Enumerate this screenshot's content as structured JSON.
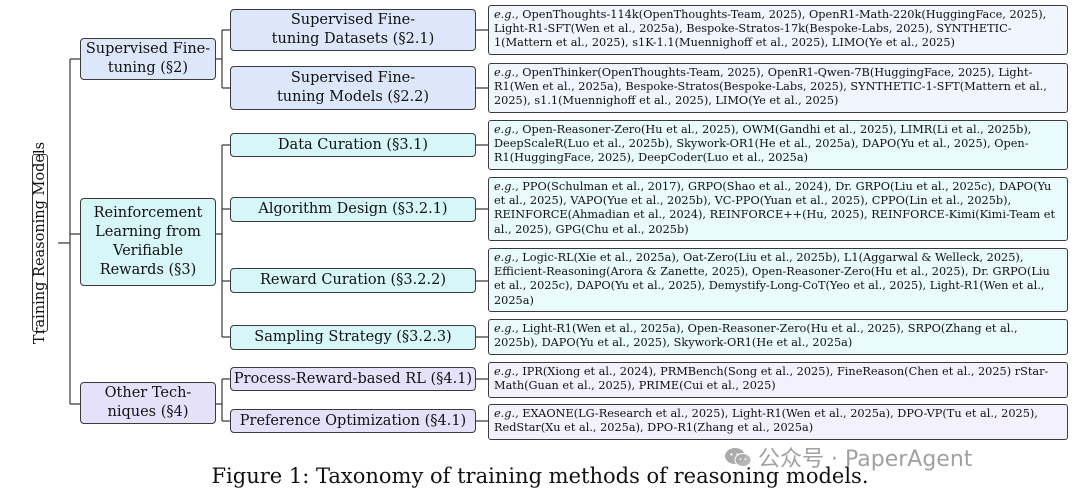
{
  "root": {
    "label": "Training Reasoning Models"
  },
  "categories": [
    {
      "label": "Supervised Fine-tuning (§2)",
      "color": "#dde7fb",
      "children": [
        {
          "label": "Supervised Fine-tuning Datasets (§2.1)",
          "eg": "e.g.,",
          "refs": "OpenThoughts-114k(OpenThoughts-Team, 2025), OpenR1-Math-220k(HuggingFace, 2025), Light-R1-SFT(Wen et al., 2025a), Bespoke-Stratos-17k(Bespoke-Labs, 2025), SYNTHETIC-1(Mattern et al., 2025), s1K-1.1(Muennighoff et al., 2025), LIMO(Ye et al., 2025)"
        },
        {
          "label": "Supervised Fine-tuning Models (§2.2)",
          "eg": "e.g.,",
          "refs": "OpenThinker(OpenThoughts-Team, 2025), OpenR1-Qwen-7B(HuggingFace, 2025), Light-R1(Wen et al., 2025a), Bespoke-Stratos(Bespoke-Labs, 2025), SYNTHETIC-1-SFT(Mattern et al., 2025), s1.1(Muennighoff et al., 2025), LIMO(Ye et al., 2025)"
        }
      ]
    },
    {
      "label": "Reinforcement Learning from Verifiable Rewards (§3)",
      "color": "#d6f6f8",
      "children": [
        {
          "label": "Data Curation (§3.1)",
          "eg": "e.g.,",
          "refs": "Open-Reasoner-Zero(Hu et al., 2025), OWM(Gandhi et al., 2025), LIMR(Li et al., 2025b), DeepScaleR(Luo et al., 2025b), Skywork-OR1(He et al., 2025a), DAPO(Yu et al., 2025), Open-R1(HuggingFace, 2025), DeepCoder(Luo et al., 2025a)"
        },
        {
          "label": "Algorithm Design (§3.2.1)",
          "eg": "e.g.,",
          "refs": "PPO(Schulman et al., 2017), GRPO(Shao et al., 2024), Dr. GRPO(Liu et al., 2025c), DAPO(Yu et al., 2025), VAPO(Yue et al., 2025b), VC-PPO(Yuan et al., 2025), CPPO(Lin et al., 2025b), REINFORCE(Ahmadian et al., 2024), REINFORCE++(Hu, 2025), REINFORCE-Kimi(Kimi-Team et al., 2025), GPG(Chu et al., 2025b)"
        },
        {
          "label": "Reward Curation (§3.2.2)",
          "eg": "e.g.,",
          "refs": "Logic-RL(Xie et al., 2025a), Oat-Zero(Liu et al., 2025b), L1(Aggarwal & Welleck, 2025), Efficient-Reasoning(Arora & Zanette, 2025), Open-Reasoner-Zero(Hu et al., 2025), Dr. GRPO(Liu et al., 2025c), DAPO(Yu et al., 2025), Demystify-Long-CoT(Yeo et al., 2025), Light-R1(Wen et al., 2025a)"
        },
        {
          "label": "Sampling Strategy (§3.2.3)",
          "eg": "e.g.,",
          "refs": "Light-R1(Wen et al., 2025a), Open-Reasoner-Zero(Hu et al., 2025), SRPO(Zhang et al., 2025b), DAPO(Yu et al., 2025), Skywork-OR1(He et al., 2025a)"
        }
      ]
    },
    {
      "label": "Other Tech-niques (§4)",
      "color": "#e6e1fb",
      "children": [
        {
          "label": "Process-Reward-based RL (§4.1)",
          "eg": "e.g.,",
          "refs": "IPR(Xiong et al., 2024), PRMBench(Song et al., 2025), FineReason(Chen et al., 2025) rStar-Math(Guan et al., 2025), PRIME(Cui et al., 2025)"
        },
        {
          "label": "Preference Optimization (§4.1)",
          "eg": "e.g.,",
          "refs": "EXAONE(LG-Research et al., 2025), Light-R1(Wen et al., 2025a), DPO-VP(Tu et al., 2025), RedStar(Xu et al., 2025a), DPO-R1(Zhang et al., 2025a)"
        }
      ]
    }
  ],
  "caption": "Figure 1: Taxonomy of training methods of reasoning models.",
  "watermark": "公众号 · PaperAgent"
}
